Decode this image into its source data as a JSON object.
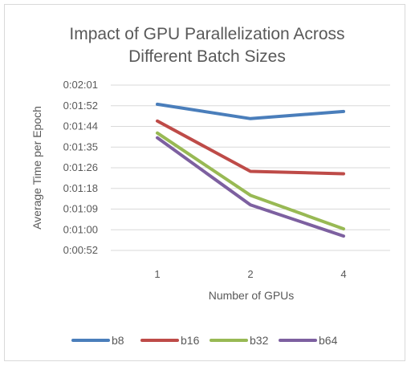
{
  "chart_data": {
    "type": "line",
    "title_lines": [
      "Impact of GPU Parallelization Across",
      "Different Batch Sizes"
    ],
    "xlabel": "Number of GPUs",
    "ylabel": "Average Time per Epoch",
    "categories": [
      "1",
      "2",
      "4"
    ],
    "y_ticks": [
      "0:00:52",
      "0:01:00",
      "0:01:09",
      "0:01:18",
      "0:01:26",
      "0:01:35",
      "0:01:44",
      "0:01:52",
      "0:02:01"
    ],
    "ylim_seconds": [
      52,
      121
    ],
    "y_unit": "seconds",
    "grid": true,
    "legend_position": "bottom",
    "series": [
      {
        "name": "b8",
        "color": "#4a7ebb",
        "values": [
          113,
          107,
          110
        ]
      },
      {
        "name": "b16",
        "color": "#be4b48",
        "values": [
          106,
          85,
          84
        ]
      },
      {
        "name": "b32",
        "color": "#98b954",
        "values": [
          101,
          75,
          61
        ]
      },
      {
        "name": "b64",
        "color": "#7d60a0",
        "values": [
          99,
          71,
          58
        ]
      }
    ]
  }
}
